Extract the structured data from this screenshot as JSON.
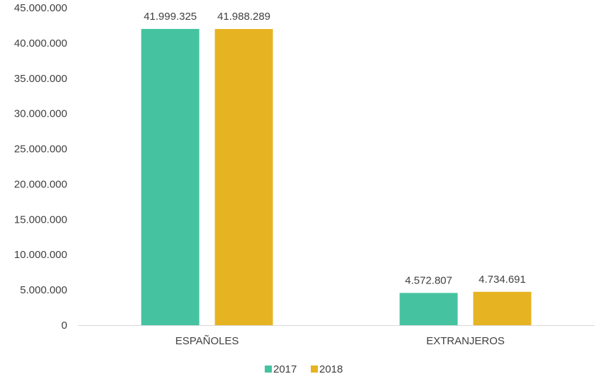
{
  "chart_data": {
    "type": "bar",
    "categories": [
      "ESPAÑOLES",
      "EXTRANJEROS"
    ],
    "series": [
      {
        "name": "2017",
        "values": [
          41999325,
          4572807
        ],
        "labels": [
          "41.999.325",
          "4.572.807"
        ],
        "color": "#45c3a1"
      },
      {
        "name": "2018",
        "values": [
          41988289,
          4734691
        ],
        "labels": [
          "41.988.289",
          "4.734.691"
        ],
        "color": "#e6b322"
      }
    ],
    "ylim": [
      0,
      45000000
    ],
    "ytick_labels": [
      "0",
      "5.000.000",
      "10.000.000",
      "15.000.000",
      "20.000.000",
      "25.000.000",
      "30.000.000",
      "35.000.000",
      "40.000.000",
      "45.000.000"
    ],
    "grid": false,
    "legend_position": "bottom-center",
    "axis_color": "#d9d9d9"
  }
}
